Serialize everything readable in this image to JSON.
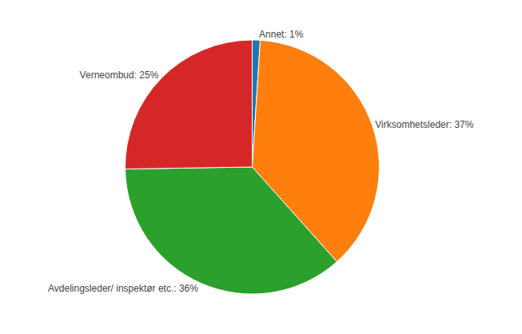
{
  "chart_data": {
    "type": "pie",
    "categories": [
      "Annet: 1%",
      "Virksomhetsleder: 37%",
      "Avdelingsleder/ inspektør etc.: 36%",
      "Verneombud: 25%"
    ],
    "values": [
      1,
      37,
      36,
      25
    ],
    "data_labels": true
  }
}
